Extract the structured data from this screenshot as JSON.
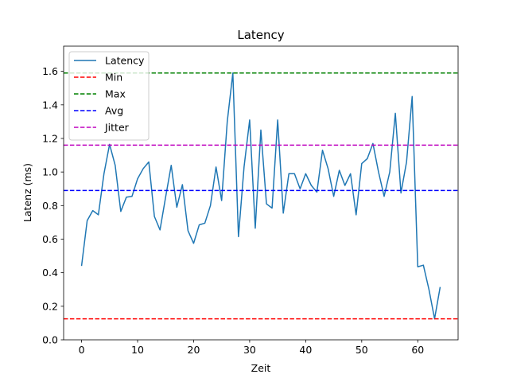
{
  "chart_data": {
    "type": "line",
    "title": "Latency",
    "xlabel": "Zeit",
    "ylabel": "Latenz (ms)",
    "xlim": [
      -3.2,
      67.2
    ],
    "ylim": [
      0.0,
      1.75
    ],
    "xticks": [
      0,
      10,
      20,
      30,
      40,
      50,
      60
    ],
    "yticks": [
      0.0,
      0.2,
      0.4,
      0.6,
      0.8,
      1.0,
      1.2,
      1.4,
      1.6
    ],
    "xtick_labels": [
      "0",
      "10",
      "20",
      "30",
      "40",
      "50",
      "60"
    ],
    "ytick_labels": [
      "0.0",
      "0.2",
      "0.4",
      "0.6",
      "0.8",
      "1.0",
      "1.2",
      "1.4",
      "1.6"
    ],
    "grid": false,
    "legend_position": "top-left",
    "series": [
      {
        "name": "Latency",
        "color": "#1f77b4",
        "style": "solid",
        "x": [
          0,
          1,
          2,
          3,
          4,
          5,
          6,
          7,
          8,
          9,
          10,
          11,
          12,
          13,
          14,
          15,
          16,
          17,
          18,
          19,
          20,
          21,
          22,
          23,
          24,
          25,
          26,
          27,
          28,
          29,
          30,
          31,
          32,
          33,
          34,
          35,
          36,
          37,
          38,
          39,
          40,
          41,
          42,
          43,
          44,
          45,
          46,
          47,
          48,
          49,
          50,
          51,
          52,
          53,
          54,
          55,
          56,
          57,
          58,
          59,
          60,
          61,
          62,
          63,
          64
        ],
        "y": [
          0.44,
          0.71,
          0.77,
          0.745,
          0.99,
          1.165,
          1.04,
          0.765,
          0.85,
          0.855,
          0.96,
          1.02,
          1.06,
          0.735,
          0.655,
          0.85,
          1.04,
          0.79,
          0.925,
          0.65,
          0.575,
          0.685,
          0.695,
          0.8,
          1.03,
          0.83,
          1.3,
          1.59,
          0.615,
          1.03,
          1.31,
          0.665,
          1.25,
          0.81,
          0.785,
          1.31,
          0.755,
          0.99,
          0.99,
          0.9,
          0.99,
          0.92,
          0.88,
          1.13,
          1.02,
          0.855,
          1.01,
          0.92,
          0.99,
          0.745,
          1.05,
          1.08,
          1.17,
          1.0,
          0.855,
          1.0,
          1.35,
          0.875,
          1.06,
          1.45,
          0.435,
          0.445,
          0.3,
          0.125,
          0.315
        ]
      },
      {
        "name": "Min",
        "color": "#ff0000",
        "style": "dashed",
        "value": 0.125
      },
      {
        "name": "Max",
        "color": "#008000",
        "style": "dashed",
        "value": 1.59
      },
      {
        "name": "Avg",
        "color": "#0000ff",
        "style": "dashed",
        "value": 0.89
      },
      {
        "name": "Jitter",
        "color": "#bf00bf",
        "style": "dashed",
        "value": 1.16
      }
    ]
  }
}
